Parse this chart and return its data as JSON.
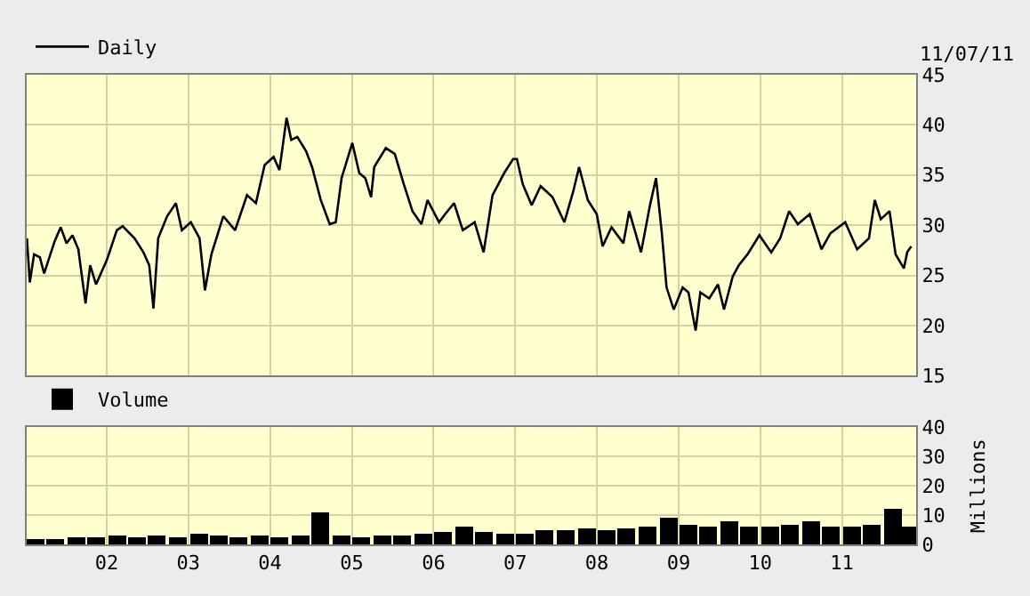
{
  "chart_data": [
    {
      "type": "line",
      "annotations": [
        "11/07/11"
      ],
      "legend": "top left",
      "grid": true,
      "tick_labels": "y",
      "xlim": [
        "2001-01-08",
        "2011-11-29"
      ],
      "xticks": [
        {
          "value": "2002-01-01",
          "label": null
        },
        {
          "value": "2003-01-01",
          "label": null
        },
        {
          "value": "2004-01-01",
          "label": null
        },
        {
          "value": "2005-01-01",
          "label": null
        },
        {
          "value": "2006-01-01",
          "label": null
        },
        {
          "value": "2007-01-01",
          "label": null
        },
        {
          "value": "2008-01-01",
          "label": null
        },
        {
          "value": "2009-01-01",
          "label": null
        },
        {
          "value": "2010-01-01",
          "label": null
        },
        {
          "value": "2011-01-01",
          "label": null
        }
      ],
      "ylim": [
        15,
        45
      ],
      "yticks": [
        15,
        20,
        25,
        30,
        35,
        40,
        45
      ],
      "x": [
        "2001-01-09",
        "2001-01-22",
        "2001-02-10",
        "2001-03-08",
        "2001-03-27",
        "2001-05-13",
        "2001-06-09",
        "2001-07-05",
        "2001-08-01",
        "2001-08-27",
        "2001-09-28",
        "2001-10-19",
        "2001-11-14",
        "2002-01-01",
        "2002-02-15",
        "2002-03-13",
        "2002-05-05",
        "2002-06-14",
        "2002-07-10",
        "2002-07-29",
        "2002-08-19",
        "2002-09-28",
        "2002-11-06",
        "2002-12-03",
        "2003-01-12",
        "2003-02-20",
        "2003-03-16",
        "2003-04-14",
        "2003-06-06",
        "2003-07-29",
        "2003-09-20",
        "2003-10-30",
        "2003-12-08",
        "2004-01-17",
        "2004-02-12",
        "2004-03-15",
        "2004-04-05",
        "2004-05-02",
        "2004-06-10",
        "2004-07-07",
        "2004-08-15",
        "2004-09-24",
        "2004-10-21",
        "2004-11-16",
        "2005-01-03",
        "2005-02-03",
        "2005-03-02",
        "2005-03-28",
        "2005-04-11",
        "2005-06-02",
        "2005-07-12",
        "2005-08-21",
        "2005-09-29",
        "2005-11-08",
        "2005-12-05",
        "2006-01-26",
        "2006-02-22",
        "2006-04-03",
        "2006-05-12",
        "2006-07-04",
        "2006-08-13",
        "2006-09-22",
        "2006-11-13",
        "2006-12-23",
        "2007-01-09",
        "2007-02-04",
        "2007-03-16",
        "2007-04-25",
        "2007-06-17",
        "2007-08-09",
        "2007-09-17",
        "2007-10-14",
        "2007-11-22",
        "2008-01-01",
        "2008-01-27",
        "2008-03-07",
        "2008-04-29",
        "2008-05-25",
        "2008-07-17",
        "2008-08-26",
        "2008-09-22",
        "2008-10-18",
        "2008-11-08",
        "2008-12-10",
        "2009-01-19",
        "2009-02-14",
        "2009-03-18",
        "2009-04-08",
        "2009-05-18",
        "2009-06-26",
        "2009-07-23",
        "2009-08-31",
        "2009-09-27",
        "2009-11-05",
        "2009-12-28",
        "2010-02-19",
        "2010-03-31",
        "2010-05-10",
        "2010-06-18",
        "2010-08-10",
        "2010-10-02",
        "2010-11-11",
        "2011-01-16",
        "2011-03-10",
        "2011-05-02",
        "2011-05-28",
        "2011-06-24",
        "2011-08-02",
        "2011-08-29",
        "2011-10-05",
        "2011-10-20",
        "2011-11-07"
      ],
      "series": [
        {
          "name": "Daily",
          "color": "#000000",
          "values": [
            28.7,
            24.3,
            27.1,
            26.8,
            25.2,
            28.4,
            29.8,
            28.2,
            29.0,
            27.6,
            22.2,
            26.0,
            24.1,
            26.5,
            29.5,
            29.9,
            28.7,
            27.3,
            26.0,
            21.7,
            28.7,
            30.9,
            32.2,
            29.5,
            30.3,
            28.7,
            23.5,
            27.1,
            30.9,
            29.5,
            33.0,
            32.2,
            36.0,
            36.8,
            35.5,
            40.7,
            38.5,
            38.8,
            37.4,
            35.8,
            32.5,
            30.1,
            30.3,
            34.7,
            38.2,
            35.2,
            34.7,
            32.8,
            35.8,
            37.7,
            37.1,
            34.1,
            31.4,
            30.1,
            32.5,
            30.3,
            31.1,
            32.2,
            29.5,
            30.3,
            27.3,
            33.0,
            35.2,
            36.6,
            36.6,
            34.1,
            32.0,
            33.9,
            32.8,
            30.3,
            33.3,
            35.8,
            32.5,
            31.1,
            27.9,
            29.8,
            28.2,
            31.4,
            27.3,
            32.0,
            34.7,
            29.2,
            23.8,
            21.6,
            23.8,
            23.3,
            19.5,
            23.3,
            22.7,
            24.1,
            21.6,
            24.9,
            26.0,
            27.1,
            29.0,
            27.3,
            28.7,
            31.4,
            30.1,
            31.1,
            27.6,
            29.2,
            30.3,
            27.6,
            28.7,
            32.5,
            30.6,
            31.4,
            27.1,
            25.7,
            27.3,
            27.9
          ]
        }
      ]
    },
    {
      "type": "bar",
      "legend": "top left",
      "grid": true,
      "ylabel": "Millions",
      "xlim": [
        "2001-01-08",
        "2011-11-29"
      ],
      "xticks": [
        {
          "value": "2002-01-01",
          "label": "02"
        },
        {
          "value": "2003-01-01",
          "label": "03"
        },
        {
          "value": "2004-01-01",
          "label": "04"
        },
        {
          "value": "2005-01-01",
          "label": "05"
        },
        {
          "value": "2006-01-01",
          "label": "06"
        },
        {
          "value": "2007-01-01",
          "label": "07"
        },
        {
          "value": "2008-01-01",
          "label": "08"
        },
        {
          "value": "2009-01-01",
          "label": "09"
        },
        {
          "value": "2010-01-01",
          "label": "10"
        },
        {
          "value": "2011-01-01",
          "label": "11"
        }
      ],
      "ylim": [
        0,
        40
      ],
      "yticks": [
        0,
        10,
        20,
        30,
        40
      ],
      "x": [
        "2001-02-15",
        "2001-05-15",
        "2001-08-15",
        "2001-11-15",
        "2002-02-15",
        "2002-05-15",
        "2002-08-15",
        "2002-11-15",
        "2003-02-15",
        "2003-05-15",
        "2003-08-15",
        "2003-11-15",
        "2004-02-15",
        "2004-05-15",
        "2004-08-15",
        "2004-11-15",
        "2005-02-15",
        "2005-05-15",
        "2005-08-15",
        "2005-11-15",
        "2006-02-15",
        "2006-05-15",
        "2006-08-15",
        "2006-11-15",
        "2007-02-15",
        "2007-05-15",
        "2007-08-15",
        "2007-11-15",
        "2008-02-15",
        "2008-05-15",
        "2008-08-15",
        "2008-11-15",
        "2009-02-15",
        "2009-05-15",
        "2009-08-15",
        "2009-11-15",
        "2010-02-15",
        "2010-05-15",
        "2010-08-15",
        "2010-11-15",
        "2011-02-15",
        "2011-05-15",
        "2011-08-15",
        "2011-10-25"
      ],
      "series": [
        {
          "name": "Volume",
          "color": "#000000",
          "values": [
            2,
            2,
            2.5,
            2.5,
            3,
            2.5,
            3,
            2.5,
            3.5,
            3,
            2.5,
            3,
            2.5,
            3,
            11,
            3,
            2.5,
            3,
            3,
            3.5,
            4,
            6,
            4,
            3.5,
            3.5,
            4.5,
            5,
            5.5,
            5,
            5.5,
            6,
            9,
            6.5,
            6,
            7.5,
            6,
            6,
            6.5,
            7.5,
            6,
            6,
            6.5,
            12,
            6
          ]
        }
      ]
    }
  ]
}
